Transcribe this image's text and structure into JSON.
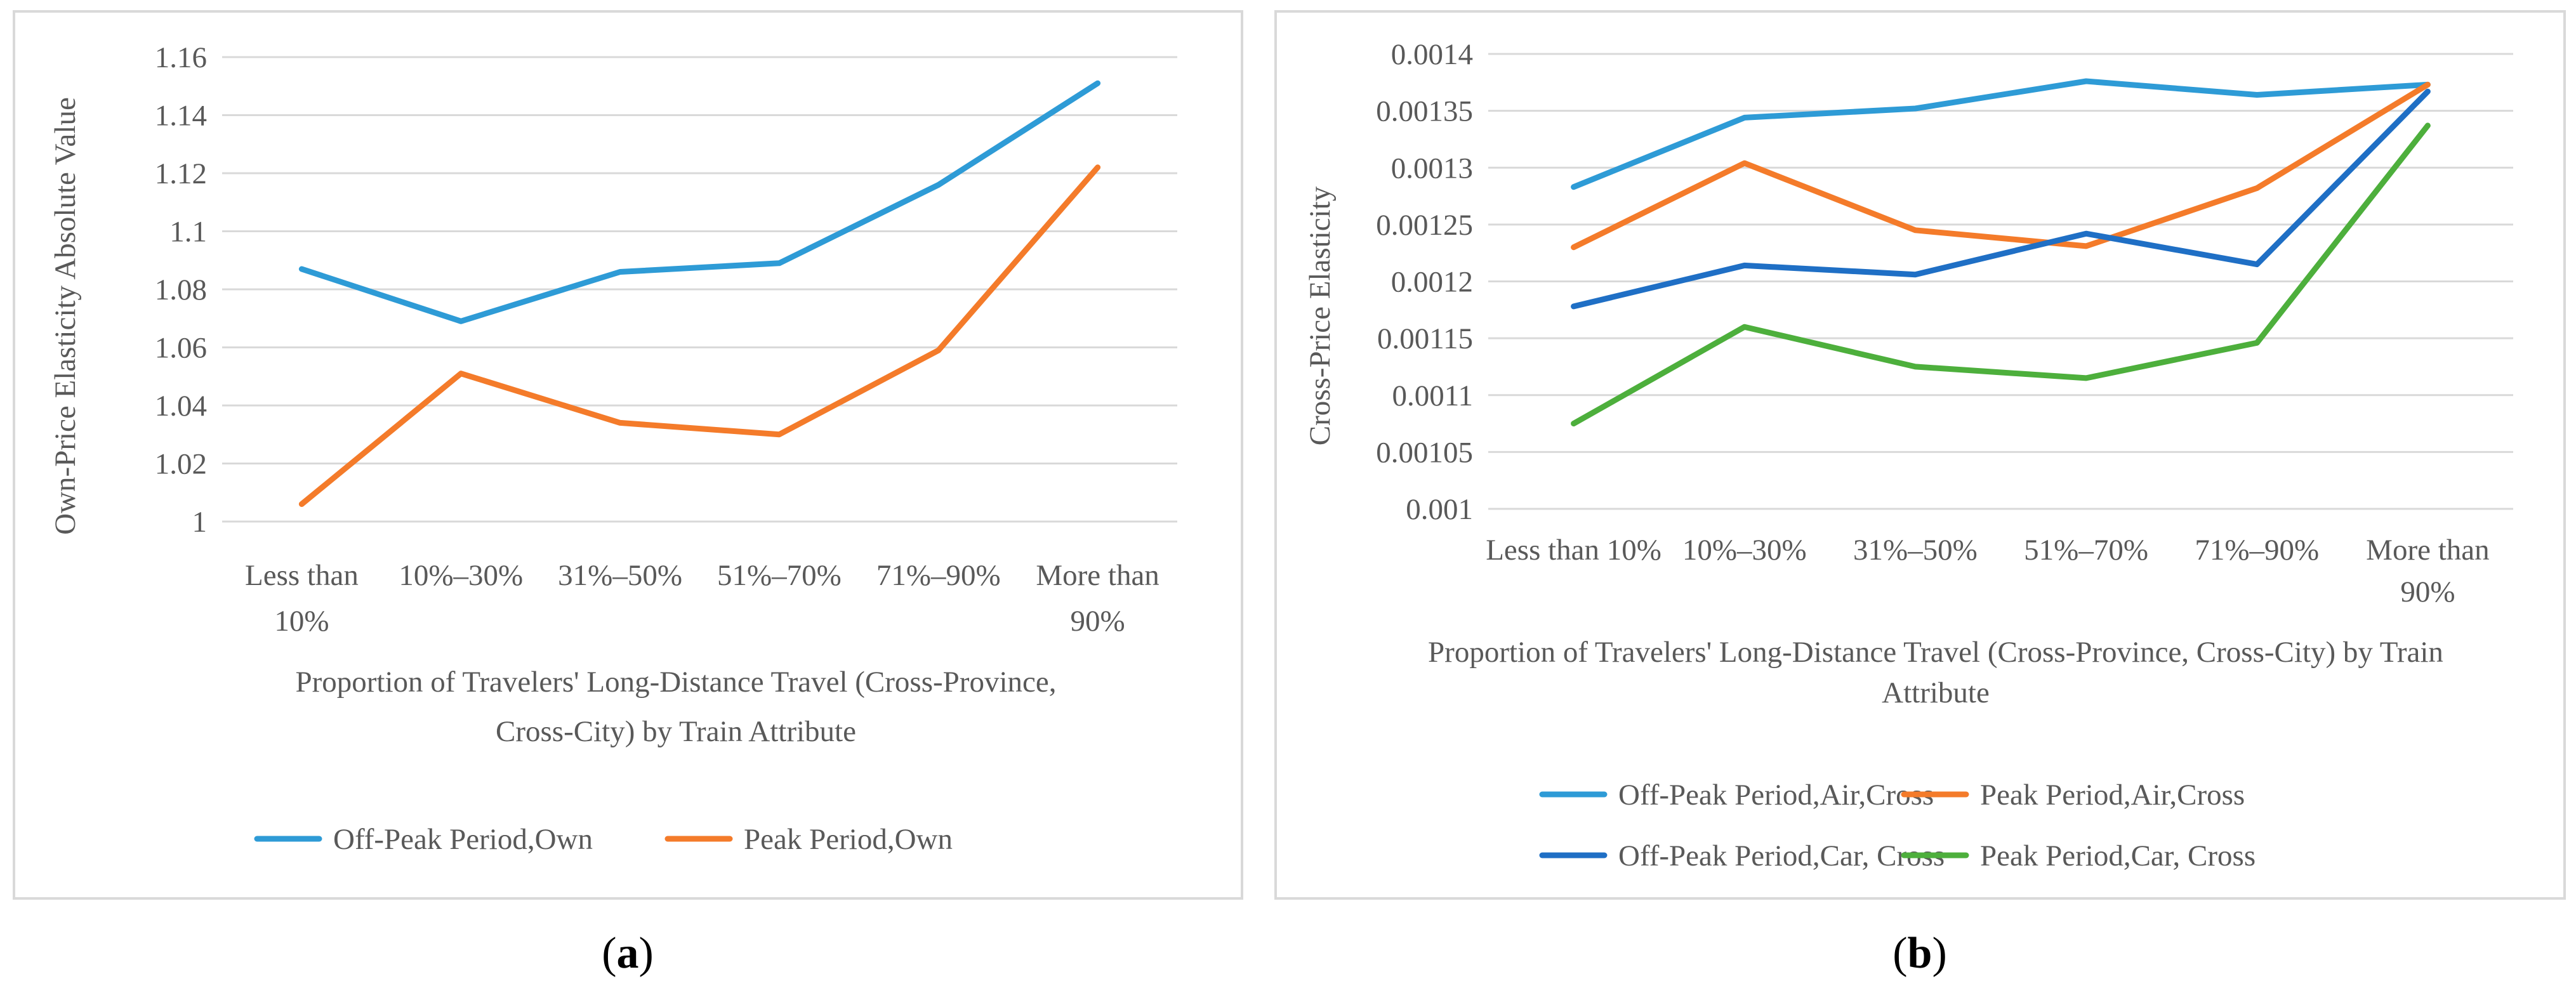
{
  "panels": [
    {
      "caption_letter": "a",
      "chart_data": {
        "type": "line",
        "categories": [
          "Less than 10%",
          "10%–30%",
          "31%–50%",
          "51%–70%",
          "71%–90%",
          "More than 90%"
        ],
        "category_lines": [
          [
            "Less than",
            "10%"
          ],
          [
            "10%–30%"
          ],
          [
            "31%–50%"
          ],
          [
            "51%–70%"
          ],
          [
            "71%–90%"
          ],
          [
            "More than",
            "90%"
          ]
        ],
        "series": [
          {
            "name": "Off-Peak Period,Own",
            "color": "#2e9bd6",
            "values": [
              1.087,
              1.069,
              1.086,
              1.089,
              1.116,
              1.151
            ]
          },
          {
            "name": "Peak Period,Own",
            "color": "#f47b2a",
            "values": [
              1.006,
              1.051,
              1.034,
              1.03,
              1.059,
              1.122
            ]
          }
        ],
        "ylim": [
          1,
          1.16
        ],
        "yticks": [
          "1",
          "1.02",
          "1.04",
          "1.06",
          "1.08",
          "1.1",
          "1.12",
          "1.14",
          "1.16"
        ],
        "ylabel": "Own-Price Elasticity Absolute Value",
        "xlabel_lines": [
          "Proportion of Travelers' Long-Distance Travel (Cross-Province,",
          "Cross-City) by Train Attribute"
        ],
        "grid": true,
        "legend": "bottom"
      }
    },
    {
      "caption_letter": "b",
      "chart_data": {
        "type": "line",
        "categories": [
          "Less than 10%",
          "10%–30%",
          "31%–50%",
          "51%–70%",
          "71%–90%",
          "More than 90%"
        ],
        "category_lines": [
          [
            "Less than 10%"
          ],
          [
            "10%–30%"
          ],
          [
            "31%–50%"
          ],
          [
            "51%–70%"
          ],
          [
            "71%–90%"
          ],
          [
            "More than",
            "90%"
          ]
        ],
        "series": [
          {
            "name": "Off-Peak Period,Air,Cross",
            "color": "#2e9bd6",
            "values": [
              0.001283,
              0.001344,
              0.001352,
              0.001376,
              0.001364,
              0.001373
            ]
          },
          {
            "name": "Peak Period,Air,Cross",
            "color": "#f47b2a",
            "values": [
              0.00123,
              0.001304,
              0.001245,
              0.001231,
              0.001282,
              0.001373
            ]
          },
          {
            "name": "Off-Peak Period,Car, Cross",
            "color": "#1f6fc5",
            "values": [
              0.001178,
              0.001214,
              0.001206,
              0.001242,
              0.001215,
              0.001367
            ]
          },
          {
            "name": "Peak Period,Car, Cross",
            "color": "#4daf3c",
            "values": [
              0.001075,
              0.00116,
              0.001125,
              0.001115,
              0.001146,
              0.001337
            ]
          }
        ],
        "ylim": [
          0.001,
          0.0014
        ],
        "yticks": [
          "0.001",
          "0.00105",
          "0.0011",
          "0.00115",
          "0.0012",
          "0.00125",
          "0.0013",
          "0.00135",
          "0.0014"
        ],
        "ylabel": "Cross-Price Elasticity",
        "xlabel_lines": [
          "Proportion of Travelers' Long-Distance Travel (Cross-Province, Cross-City)  by Train",
          "Attribute"
        ],
        "grid": true,
        "legend": "bottom"
      }
    }
  ]
}
